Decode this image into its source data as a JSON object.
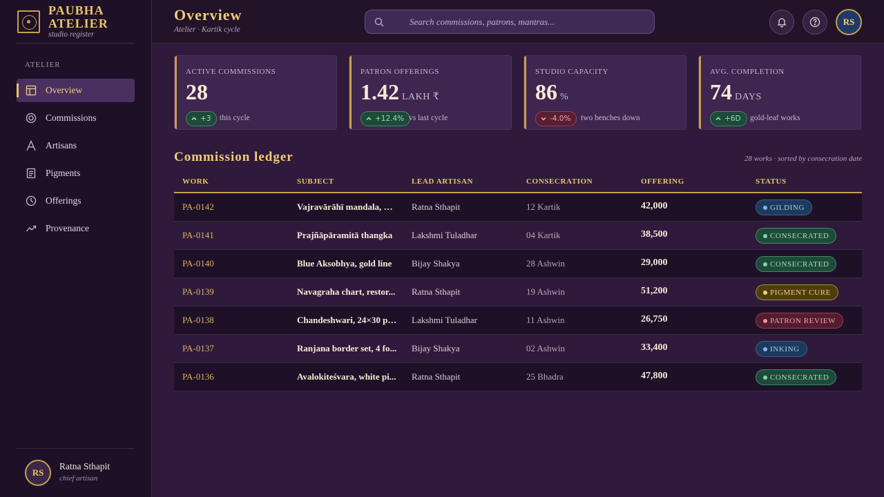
{
  "brand": {
    "name": "PAUBHA ATELIER",
    "subtitle": "studio register"
  },
  "sidebar": {
    "section_label": "ATELIER",
    "items": [
      {
        "label": "Overview",
        "icon": "layout-icon",
        "active": true
      },
      {
        "label": "Commissions",
        "icon": "target-icon",
        "active": false
      },
      {
        "label": "Artisans",
        "icon": "brush-icon",
        "active": false
      },
      {
        "label": "Pigments",
        "icon": "document-icon",
        "active": false
      },
      {
        "label": "Offerings",
        "icon": "clock-icon",
        "active": false
      },
      {
        "label": "Provenance",
        "icon": "trend-icon",
        "active": false
      }
    ],
    "user": {
      "initials": "RS",
      "name": "Ratna Sthapit",
      "role": "chief artisan"
    }
  },
  "header": {
    "title": "Overview",
    "subtitle": "Atelier · Kartik cycle",
    "search_placeholder": "Search commissions, patrons, mantras...",
    "avatar_initials": "RS"
  },
  "stats": [
    {
      "label": "ACTIVE COMMISSIONS",
      "value": "28",
      "unit": "",
      "delta": "+3",
      "direction": "up",
      "note": "this cycle"
    },
    {
      "label": "PATRON OFFERINGS",
      "value": "1.42",
      "unit": "LAKH ₹",
      "delta": "+12.4%",
      "direction": "up",
      "note": "vs last cycle"
    },
    {
      "label": "STUDIO CAPACITY",
      "value": "86",
      "unit": "%",
      "delta": "-4.0%",
      "direction": "down",
      "note": "two benches down"
    },
    {
      "label": "AVG. COMPLETION",
      "value": "74",
      "unit": "DAYS",
      "delta": "+6D",
      "direction": "up",
      "note": "gold-leaf works"
    }
  ],
  "ledger": {
    "title": "Commission ledger",
    "meta": "28 works · sorted by consecration date",
    "columns": [
      "WORK",
      "SUBJECT",
      "LEAD ARTISAN",
      "CONSECRATION",
      "OFFERING",
      "STATUS"
    ],
    "rows": [
      {
        "work": "PA-0142",
        "subject": "Vajravārāhī mandala, 36...",
        "lead": "Ratna Sthapit",
        "date": "12 Kartik",
        "offering": "42,000",
        "status": "GILDING",
        "status_class": "st-gilding"
      },
      {
        "work": "PA-0141",
        "subject": "Prajñāpāramitā thangka",
        "lead": "Lakshmi Tuladhar",
        "date": "04 Kartik",
        "offering": "38,500",
        "status": "CONSECRATED",
        "status_class": "st-consecrated"
      },
      {
        "work": "PA-0140",
        "subject": "Blue Aksobhya, gold line",
        "lead": "Bijay Shakya",
        "date": "28 Ashwin",
        "offering": "29,000",
        "status": "CONSECRATED",
        "status_class": "st-consecrated"
      },
      {
        "work": "PA-0139",
        "subject": "Navagraha chart, restor...",
        "lead": "Ratna Sthapit",
        "date": "19 Ashwin",
        "offering": "51,200",
        "status": "PIGMENT CURE",
        "status_class": "st-cure"
      },
      {
        "work": "PA-0138",
        "subject": "Chandeshwari, 24×30 pa...",
        "lead": "Lakshmi Tuladhar",
        "date": "11 Ashwin",
        "offering": "26,750",
        "status": "PATRON REVIEW",
        "status_class": "st-review"
      },
      {
        "work": "PA-0137",
        "subject": "Ranjana border set, 4 fo...",
        "lead": "Bijay Shakya",
        "date": "02 Ashwin",
        "offering": "33,400",
        "status": "INKING",
        "status_class": "st-inking"
      },
      {
        "work": "PA-0136",
        "subject": "Avalokiteśvara, white pi...",
        "lead": "Ratna Sthapit",
        "date": "25 Bhadra",
        "offering": "47,800",
        "status": "CONSECRATED",
        "status_class": "st-consecrated"
      }
    ]
  },
  "colors": {
    "accent_gold": "#e8c468",
    "sidebar_bg": "#1e1027",
    "main_bg": "#2f1a3c",
    "card_bg": "#3e2650",
    "positive": "#8de0b0",
    "negative": "#f5a0b2"
  }
}
